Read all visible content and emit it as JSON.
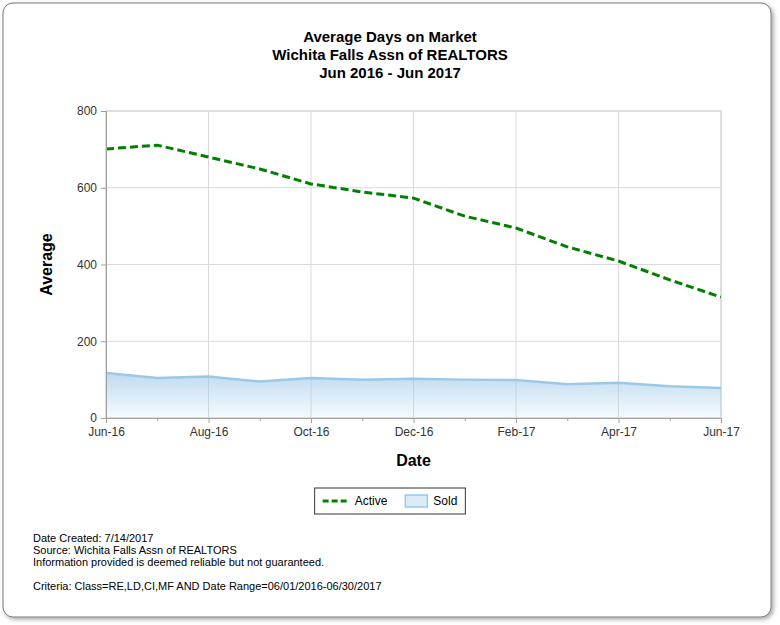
{
  "chart_data": {
    "type": "line",
    "title": "Average Days on Market",
    "subtitle": [
      "Wichita Falls Assn of REALTORS",
      "Jun 2016 - Jun 2017"
    ],
    "x_label": "Date",
    "y_label": "Average",
    "categories": [
      "Jun-16",
      null,
      "Aug-16",
      null,
      "Oct-16",
      null,
      "Dec-16",
      null,
      "Feb-17",
      null,
      "Apr-17",
      null,
      "Jun-17"
    ],
    "series": [
      {
        "name": "Active",
        "type": "line",
        "color": "#008000",
        "line_style": "dashed",
        "values": [
          701,
          711,
          680,
          649,
          610,
          589,
          573,
          526,
          495,
          446,
          409,
          360,
          315
        ]
      },
      {
        "name": "Sold",
        "type": "area",
        "color": "#9cc8e8",
        "line_style": "solid",
        "values": [
          117,
          104,
          108,
          95,
          104,
          100,
          102,
          100,
          99,
          88,
          92,
          83,
          78
        ]
      }
    ],
    "ylim": [
      0,
      800
    ],
    "yticks": [
      0,
      200,
      400,
      600,
      800
    ],
    "grid": true,
    "legend": "bottom",
    "annotations": [
      "Date Created: 7/14/2017",
      "Source: Wichita Falls Assn of REALTORS",
      "Information provided is deemed reliable but not guaranteed.",
      "Criteria: Class=RE,LD,CI,MF AND Date Range=06/01/2016-06/30/2017"
    ]
  }
}
